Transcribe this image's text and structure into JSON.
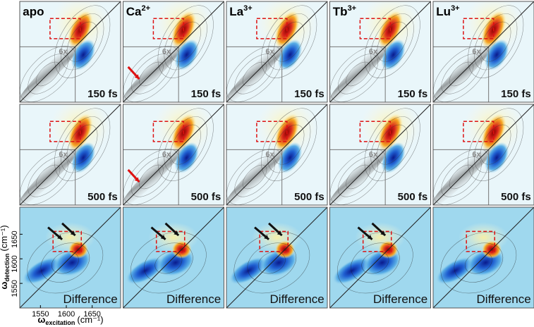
{
  "columns": [
    {
      "label": "apo"
    },
    {
      "label": "Ca",
      "charge": "2+"
    },
    {
      "label": "La",
      "charge": "3+"
    },
    {
      "label": "Tb",
      "charge": "3+"
    },
    {
      "label": "Lu",
      "charge": "3+"
    }
  ],
  "rows": [
    {
      "label": "150 fs"
    },
    {
      "label": "500 fs"
    },
    {
      "label": "Difference"
    }
  ],
  "scale_label": "6x",
  "axes": {
    "x_label": {
      "symbol": "ω",
      "subscript": "excitation",
      "unit": "(cm⁻¹)"
    },
    "y_label": {
      "symbol": "ω",
      "subscript": "detection",
      "unit": "(cm⁻¹)"
    },
    "xlim": [
      1510,
      1705
    ],
    "ylim": [
      1500,
      1705
    ],
    "xticks": [
      1550,
      1600,
      1650
    ],
    "yticks": [
      1550,
      1600,
      1650
    ]
  }
}
